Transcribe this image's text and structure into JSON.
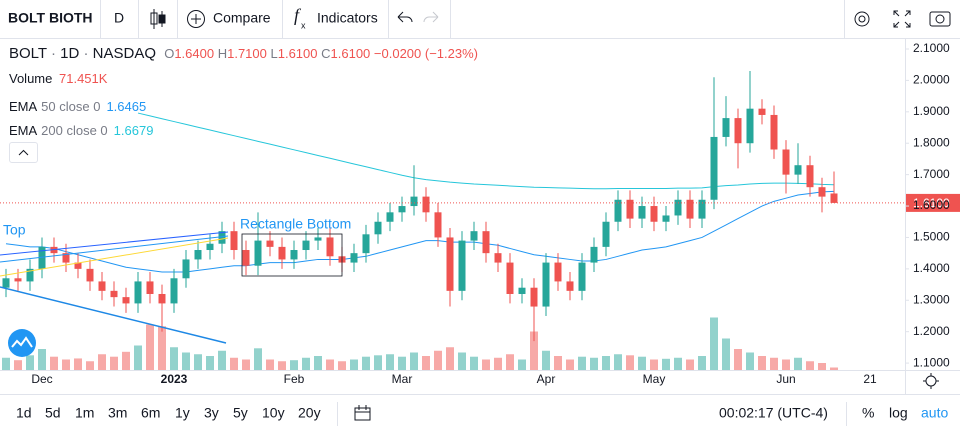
{
  "toolbar": {
    "symbol": "BOLT BIOTH",
    "interval": "D",
    "compare": "Compare",
    "indicators": "Indicators"
  },
  "legend": {
    "symbol": "BOLT",
    "sep1": "·",
    "interval": "1D",
    "sep2": "·",
    "exchange": "NASDAQ",
    "o_key": "O",
    "o": "1.6400",
    "h_key": "H",
    "h": "1.7100",
    "l_key": "L",
    "l": "1.6100",
    "c_key": "C",
    "c": "1.6100",
    "change": "−0.0200 (−1.23%)"
  },
  "drawings": {
    "top": "Top",
    "rect": "Rectangle Bottom"
  },
  "chart_data": {
    "type": "candlestick",
    "categories": [
      null,
      null,
      null,
      "Dec",
      null,
      null,
      null,
      null,
      null,
      null,
      null,
      null,
      null,
      null,
      "2023",
      null,
      null,
      null,
      null,
      null,
      null,
      null,
      null,
      null,
      "Feb",
      null,
      null,
      null,
      null,
      null,
      null,
      null,
      null,
      "Mar",
      null,
      null,
      null,
      null,
      null,
      null,
      null,
      null,
      null,
      null,
      null,
      "Apr",
      null,
      null,
      null,
      null,
      null,
      null,
      null,
      null,
      "May",
      null,
      null,
      null,
      null,
      null,
      null,
      null,
      null,
      null,
      null,
      "Jun",
      null,
      null,
      null,
      null,
      null,
      null,
      "21"
    ],
    "open": [
      1.34,
      1.37,
      1.36,
      1.4,
      1.47,
      1.45,
      1.42,
      1.4,
      1.36,
      1.33,
      1.31,
      1.29,
      1.36,
      1.32,
      1.29,
      1.37,
      1.43,
      1.46,
      1.48,
      1.52,
      1.46,
      1.41,
      1.49,
      1.47,
      1.43,
      1.46,
      1.49,
      1.5,
      1.44,
      1.42,
      1.45,
      1.51,
      1.55,
      1.58,
      1.6,
      1.63,
      1.58,
      1.5,
      1.33,
      1.49,
      1.52,
      1.45,
      1.42,
      1.32,
      1.34,
      1.28,
      1.42,
      1.36,
      1.33,
      1.42,
      1.47,
      1.55,
      1.62,
      1.56,
      1.6,
      1.55,
      1.57,
      1.62,
      1.56,
      1.62,
      1.82,
      1.88,
      1.8,
      1.91,
      1.89,
      1.78,
      1.7,
      1.73,
      1.66,
      1.64,
      null,
      null,
      null
    ],
    "high": [
      1.4,
      1.4,
      1.43,
      1.5,
      1.5,
      1.48,
      1.45,
      1.43,
      1.39,
      1.36,
      1.34,
      1.39,
      1.39,
      1.35,
      1.4,
      1.46,
      1.49,
      1.51,
      1.55,
      1.55,
      1.49,
      1.58,
      1.52,
      1.5,
      1.49,
      1.52,
      1.53,
      1.53,
      1.47,
      1.48,
      1.54,
      1.58,
      1.61,
      1.63,
      1.73,
      1.66,
      1.61,
      1.53,
      1.52,
      1.55,
      1.55,
      1.48,
      1.45,
      1.37,
      1.37,
      1.45,
      1.45,
      1.39,
      1.45,
      1.5,
      1.58,
      1.65,
      1.65,
      1.63,
      1.63,
      1.6,
      1.65,
      1.65,
      1.65,
      2.01,
      1.95,
      1.91,
      2.03,
      1.94,
      1.92,
      1.81,
      1.8,
      1.76,
      1.69,
      1.71,
      null,
      null,
      null
    ],
    "low": [
      1.31,
      1.33,
      1.33,
      1.37,
      1.42,
      1.39,
      1.37,
      1.33,
      1.3,
      1.28,
      1.26,
      1.26,
      1.29,
      1.2,
      1.26,
      1.34,
      1.4,
      1.43,
      1.45,
      1.43,
      1.38,
      1.38,
      1.44,
      1.4,
      1.4,
      1.43,
      1.46,
      1.41,
      1.39,
      1.39,
      1.42,
      1.48,
      1.52,
      1.55,
      1.57,
      1.55,
      1.47,
      1.28,
      1.3,
      1.46,
      1.42,
      1.39,
      1.29,
      1.29,
      1.17,
      1.25,
      1.33,
      1.3,
      1.3,
      1.39,
      1.44,
      1.52,
      1.53,
      1.53,
      1.52,
      1.52,
      1.54,
      1.53,
      1.53,
      1.59,
      1.79,
      1.72,
      1.77,
      1.86,
      1.75,
      1.64,
      1.67,
      1.63,
      1.58,
      1.61,
      null,
      null,
      null
    ],
    "close": [
      1.37,
      1.36,
      1.4,
      1.47,
      1.45,
      1.42,
      1.4,
      1.36,
      1.33,
      1.31,
      1.29,
      1.36,
      1.32,
      1.29,
      1.37,
      1.43,
      1.46,
      1.48,
      1.52,
      1.46,
      1.41,
      1.49,
      1.47,
      1.43,
      1.46,
      1.49,
      1.5,
      1.44,
      1.42,
      1.45,
      1.51,
      1.55,
      1.58,
      1.6,
      1.63,
      1.58,
      1.5,
      1.33,
      1.49,
      1.52,
      1.45,
      1.42,
      1.32,
      1.34,
      1.28,
      1.42,
      1.36,
      1.33,
      1.42,
      1.47,
      1.55,
      1.62,
      1.56,
      1.6,
      1.55,
      1.57,
      1.62,
      1.56,
      1.62,
      1.82,
      1.88,
      1.8,
      1.91,
      1.89,
      1.78,
      1.7,
      1.73,
      1.66,
      1.63,
      1.61,
      null,
      null,
      null
    ],
    "up_color": "#26a69a",
    "down_color": "#ef5350",
    "volume": {
      "name": "Volume",
      "legend_value": "71.451K",
      "vlim": [
        0,
        4000000
      ],
      "values": [
        350000,
        280000,
        420000,
        600000,
        380000,
        300000,
        330000,
        250000,
        450000,
        380000,
        520000,
        700000,
        1300000,
        1250000,
        650000,
        500000,
        450000,
        400000,
        550000,
        350000,
        300000,
        620000,
        300000,
        250000,
        280000,
        350000,
        400000,
        300000,
        250000,
        300000,
        380000,
        420000,
        450000,
        380000,
        500000,
        400000,
        550000,
        650000,
        500000,
        380000,
        300000,
        350000,
        450000,
        300000,
        1100000,
        550000,
        400000,
        300000,
        380000,
        350000,
        400000,
        450000,
        420000,
        380000,
        300000,
        320000,
        350000,
        300000,
        400000,
        1500000,
        900000,
        600000,
        500000,
        400000,
        350000,
        300000,
        350000,
        250000,
        200000,
        71451,
        null,
        null,
        null
      ]
    },
    "series": [
      {
        "name": "EMA",
        "params": "50 close 0",
        "color": "#2196f3",
        "values": [
          1.48,
          1.475,
          1.47,
          1.47,
          1.465,
          1.455,
          1.445,
          1.435,
          1.425,
          1.415,
          1.405,
          1.4,
          1.395,
          1.39,
          1.39,
          1.39,
          1.395,
          1.4,
          1.405,
          1.41,
          1.41,
          1.415,
          1.42,
          1.42,
          1.42,
          1.425,
          1.43,
          1.43,
          1.43,
          1.435,
          1.44,
          1.45,
          1.46,
          1.47,
          1.48,
          1.49,
          1.49,
          1.485,
          1.485,
          1.485,
          1.48,
          1.475,
          1.465,
          1.455,
          1.445,
          1.44,
          1.435,
          1.43,
          1.425,
          1.425,
          1.43,
          1.44,
          1.45,
          1.46,
          1.465,
          1.47,
          1.48,
          1.49,
          1.5,
          1.52,
          1.54,
          1.56,
          1.58,
          1.6,
          1.615,
          1.625,
          1.635,
          1.64,
          1.645,
          1.6465,
          null,
          null,
          null
        ]
      },
      {
        "name": "EMA",
        "params": "200 close 0",
        "color": "#26c6da",
        "values": [
          null,
          null,
          null,
          null,
          null,
          null,
          null,
          null,
          null,
          null,
          null,
          1.896,
          1.887,
          1.878,
          1.869,
          1.86,
          1.851,
          1.842,
          1.833,
          1.824,
          1.815,
          1.806,
          1.797,
          1.788,
          1.779,
          1.77,
          1.761,
          1.752,
          1.743,
          1.734,
          1.725,
          1.716,
          1.707,
          1.698,
          1.69,
          1.684,
          1.68,
          1.676,
          1.673,
          1.67,
          1.668,
          1.666,
          1.664,
          1.662,
          1.66,
          1.659,
          1.658,
          1.657,
          1.656,
          1.655,
          1.655,
          1.656,
          1.656,
          1.656,
          1.656,
          1.656,
          1.657,
          1.657,
          1.658,
          1.662,
          1.665,
          1.667,
          1.67,
          1.672,
          1.673,
          1.673,
          1.672,
          1.671,
          1.669,
          1.6679,
          null,
          null,
          null
        ]
      }
    ],
    "ylim": [
      1.078,
      2.135
    ],
    "yticks": [
      {
        "value": 1.1,
        "label": "1.1000"
      },
      {
        "value": 1.2,
        "label": "1.2000"
      },
      {
        "value": 1.3,
        "label": "1.3000"
      },
      {
        "value": 1.4,
        "label": "1.4000"
      },
      {
        "value": 1.5,
        "label": "1.5000"
      },
      {
        "value": 1.6,
        "label": "1.6000"
      },
      {
        "value": 1.7,
        "label": "1.7000"
      },
      {
        "value": 1.8,
        "label": "1.8000"
      },
      {
        "value": 1.9,
        "label": "1.9000"
      },
      {
        "value": 2.0,
        "label": "2.0000"
      },
      {
        "value": 2.1,
        "label": "2.1000"
      }
    ],
    "last_price": {
      "value": 1.61,
      "label": "1.6100"
    },
    "grid": false
  },
  "bottom_bar": {
    "ranges": [
      "1d",
      "5d",
      "1m",
      "3m",
      "6m",
      "1y",
      "3y",
      "5y",
      "10y",
      "20y"
    ],
    "clock": "00:02:17 (UTC-4)",
    "percent": "%",
    "log": "log",
    "auto": "auto"
  }
}
